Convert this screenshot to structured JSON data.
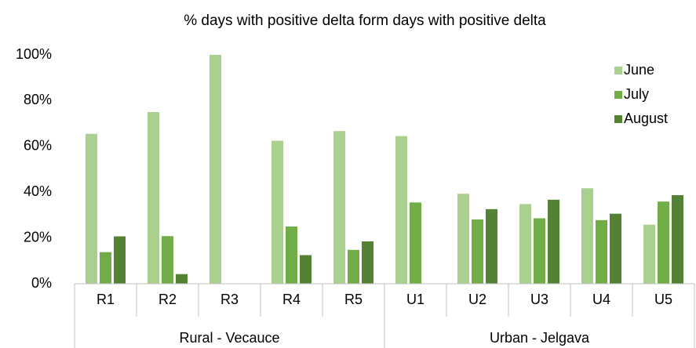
{
  "chart_data": {
    "type": "bar",
    "title": "% days with positive delta form days with positive delta",
    "categories": [
      "R1",
      "R2",
      "R3",
      "R4",
      "R5",
      "U1",
      "U2",
      "U3",
      "U4",
      "U5"
    ],
    "groups": [
      "Rural - Vecauce",
      "Urban - Jelgava"
    ],
    "series": [
      {
        "name": "June",
        "color": "#a9d08e",
        "values": [
          65.5,
          75,
          100,
          62.5,
          66.7,
          64.5,
          39.3,
          34.8,
          41.7,
          25.8
        ]
      },
      {
        "name": "July",
        "color": "#70ad47",
        "values": [
          13.8,
          20.8,
          0,
          25,
          14.8,
          35.5,
          28.1,
          28.6,
          27.8,
          35.9
        ]
      },
      {
        "name": "August",
        "color": "#548235",
        "values": [
          20.7,
          4.2,
          0,
          12.5,
          18.5,
          0,
          32.6,
          36.7,
          30.6,
          38.7
        ]
      }
    ],
    "ylim": [
      0,
      100
    ],
    "yticks": [
      {
        "value": 0,
        "label": "0%"
      },
      {
        "value": 20,
        "label": "20%"
      },
      {
        "value": 40,
        "label": "40%"
      },
      {
        "value": 60,
        "label": "60%"
      },
      {
        "value": 80,
        "label": "80%"
      },
      {
        "value": 100,
        "label": "100%"
      }
    ],
    "grid": false,
    "legend": "top-right"
  }
}
